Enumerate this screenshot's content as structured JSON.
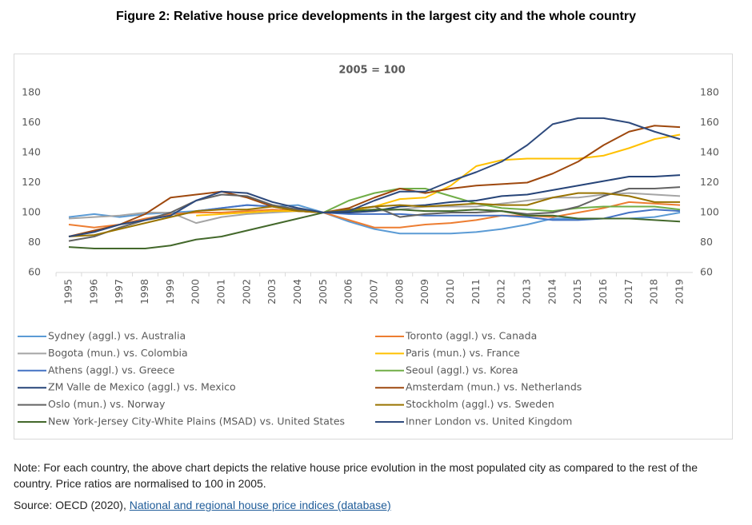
{
  "header": {
    "title": "Figure 2: Relative house price developments in the largest city and the whole country"
  },
  "chart_data": {
    "type": "line",
    "title": "2005 = 100",
    "categories": [
      "1995",
      "1996",
      "1997",
      "1998",
      "1999",
      "2000",
      "2001",
      "2002",
      "2003",
      "2004",
      "2005",
      "2006",
      "2007",
      "2008",
      "2009",
      "2010",
      "2011",
      "2012",
      "2013",
      "2014",
      "2015",
      "2016",
      "2017",
      "2018",
      "2019"
    ],
    "ylim": [
      60,
      180
    ],
    "yticks": [
      60,
      80,
      100,
      120,
      140,
      160,
      180
    ],
    "y2lim": [
      60,
      180
    ],
    "y2ticks": [
      60,
      80,
      100,
      120,
      140,
      160,
      180
    ],
    "grid": false,
    "series": [
      {
        "name": "Sydney (aggl.) vs. Australia",
        "color": "#5b9bd5",
        "values": [
          97,
          99,
          97,
          99,
          100,
          101,
          103,
          105,
          104,
          105,
          100,
          94,
          89,
          86,
          86,
          86,
          87,
          89,
          92,
          96,
          96,
          96,
          96,
          97,
          100
        ]
      },
      {
        "name": "Toronto (aggl.) vs. Canada",
        "color": "#ed7d31",
        "values": [
          92,
          90,
          92,
          96,
          99,
          100,
          100,
          101,
          102,
          101,
          100,
          95,
          90,
          90,
          92,
          93,
          95,
          98,
          98,
          97,
          100,
          103,
          107,
          106,
          105
        ]
      },
      {
        "name": "Bogota (mun.) vs. Colombia",
        "color": "#a5a5a5",
        "values": [
          96,
          97,
          98,
          100,
          100,
          93,
          97,
          99,
          100,
          101,
          100,
          100,
          101,
          102,
          104,
          104,
          104,
          106,
          108,
          110,
          110,
          112,
          113,
          112,
          111
        ]
      },
      {
        "name": "Paris (mun.) vs. France",
        "color": "#ffc000",
        "values": [
          null,
          null,
          null,
          null,
          null,
          98,
          99,
          100,
          101,
          101,
          100,
          101,
          104,
          109,
          110,
          118,
          131,
          135,
          136,
          136,
          136,
          138,
          143,
          149,
          152
        ]
      },
      {
        "name": "Athens (aggl.) vs. Greece",
        "color": "#4472c4",
        "values": [
          null,
          null,
          null,
          null,
          null,
          101,
          103,
          105,
          104,
          102,
          100,
          99,
          99,
          99,
          98,
          98,
          98,
          98,
          97,
          95,
          95,
          96,
          100,
          102,
          101
        ]
      },
      {
        "name": "Seoul (aggl.) vs. Korea",
        "color": "#70ad47",
        "values": [
          null,
          null,
          null,
          null,
          null,
          null,
          null,
          null,
          null,
          null,
          100,
          108,
          113,
          116,
          116,
          111,
          106,
          103,
          102,
          101,
          103,
          104,
          104,
          104,
          102
        ]
      },
      {
        "name": "ZM Valle de Mexico (aggl.) vs. Mexico",
        "color": "#264478",
        "values": [
          null,
          null,
          null,
          null,
          null,
          null,
          null,
          null,
          null,
          null,
          100,
          100,
          101,
          104,
          105,
          107,
          108,
          111,
          112,
          115,
          118,
          121,
          124,
          124,
          125
        ]
      },
      {
        "name": "Amsterdam (mun.) vs. Netherlands",
        "color": "#9e480e",
        "values": [
          84,
          88,
          92,
          99,
          110,
          112,
          114,
          110,
          104,
          101,
          100,
          103,
          110,
          116,
          113,
          116,
          118,
          119,
          120,
          126,
          134,
          145,
          154,
          158,
          157
        ]
      },
      {
        "name": "Oslo (mun.) vs. Norway",
        "color": "#636363",
        "values": [
          81,
          84,
          90,
          95,
          100,
          108,
          112,
          111,
          105,
          102,
          100,
          102,
          104,
          97,
          99,
          100,
          100,
          101,
          99,
          100,
          104,
          111,
          116,
          116,
          117
        ]
      },
      {
        "name": "Stockholm (aggl.) vs. Sweden",
        "color": "#997300",
        "values": [
          84,
          85,
          89,
          93,
          97,
          101,
          102,
          102,
          104,
          101,
          100,
          102,
          104,
          105,
          104,
          105,
          106,
          105,
          105,
          110,
          113,
          113,
          111,
          107,
          107
        ]
      },
      {
        "name": "New York-Jersey City-White Plains (MSAD) vs. United States",
        "color": "#43682b",
        "values": [
          77,
          76,
          76,
          76,
          78,
          82,
          84,
          88,
          92,
          96,
          100,
          101,
          102,
          102,
          101,
          101,
          102,
          101,
          98,
          98,
          96,
          96,
          96,
          95,
          94
        ]
      },
      {
        "name": "Inner London vs. United Kingdom",
        "color": "#2e4a7d",
        "values": [
          84,
          87,
          92,
          95,
          98,
          108,
          114,
          113,
          107,
          103,
          100,
          101,
          108,
          114,
          114,
          121,
          127,
          134,
          145,
          159,
          163,
          163,
          160,
          154,
          149
        ]
      }
    ]
  },
  "note": "Note: For each country, the above chart depicts the relative house price evolution in the most populated city as compared to the rest of the country. Price ratios are normalised to 100 in 2005.",
  "source": {
    "text": "Source: OECD (2020),",
    "link": "National and regional house price indices (database)"
  }
}
